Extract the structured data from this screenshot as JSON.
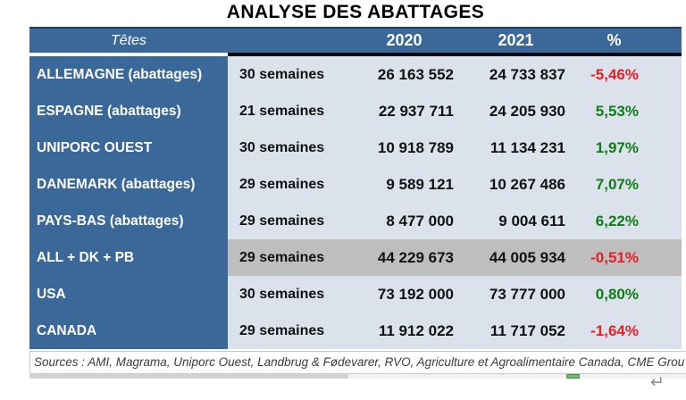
{
  "title": "ANALYSE DES ABATTAGES",
  "table": {
    "header": {
      "tetes": "Têtes",
      "y2020": "2020",
      "y2021": "2021",
      "pct": "%"
    },
    "rows": [
      {
        "name": "ALLEMAGNE (abattages)",
        "weeks": "30 semaines",
        "y2020": "26 163 552",
        "y2021": "24 733 837",
        "pct": "-5,46%",
        "trend": "negative",
        "highlight": false
      },
      {
        "name": "ESPAGNE (abattages)",
        "weeks": "21 semaines",
        "y2020": "22 937 711",
        "y2021": "24 205 930",
        "pct": "5,53%",
        "trend": "positive",
        "highlight": false
      },
      {
        "name": "UNIPORC OUEST",
        "weeks": "30 semaines",
        "y2020": "10 918 789",
        "y2021": "11 134 231",
        "pct": "1,97%",
        "trend": "positive",
        "highlight": false
      },
      {
        "name": "DANEMARK (abattages)",
        "weeks": "29 semaines",
        "y2020": "9 589 121",
        "y2021": "10 267 486",
        "pct": "7,07%",
        "trend": "positive",
        "highlight": false
      },
      {
        "name": "PAYS-BAS (abattages)",
        "weeks": "29 semaines",
        "y2020": "8 477 000",
        "y2021": "9 004 611",
        "pct": "6,22%",
        "trend": "positive",
        "highlight": false
      },
      {
        "name": "ALL + DK + PB",
        "weeks": "29 semaines",
        "y2020": "44 229 673",
        "y2021": "44 005 934",
        "pct": "-0,51%",
        "trend": "negative",
        "highlight": true
      },
      {
        "name": "USA",
        "weeks": "30 semaines",
        "y2020": "73 192 000",
        "y2021": "73 777 000",
        "pct": "0,80%",
        "trend": "positive",
        "highlight": false
      },
      {
        "name": "CANADA",
        "weeks": "29 semaines",
        "y2020": "11 912 022",
        "y2021": "11 717 052",
        "pct": "-1,64%",
        "trend": "negative",
        "highlight": false
      }
    ]
  },
  "footer": {
    "sources": "Sources : AMI, Magrama, Uniporc Ouest, Landbrug & Fødevarer, RVO, Agriculture et Agroalimentaire Canada, CME Grou"
  },
  "marks": {
    "return_mark": "↵"
  },
  "colors": {
    "header_blue": "#3a6898",
    "row_background": "#dce2ec",
    "highlight_gray": "#bebebe",
    "positive_green": "#0e7e14",
    "negative_red": "#ea1c25"
  }
}
